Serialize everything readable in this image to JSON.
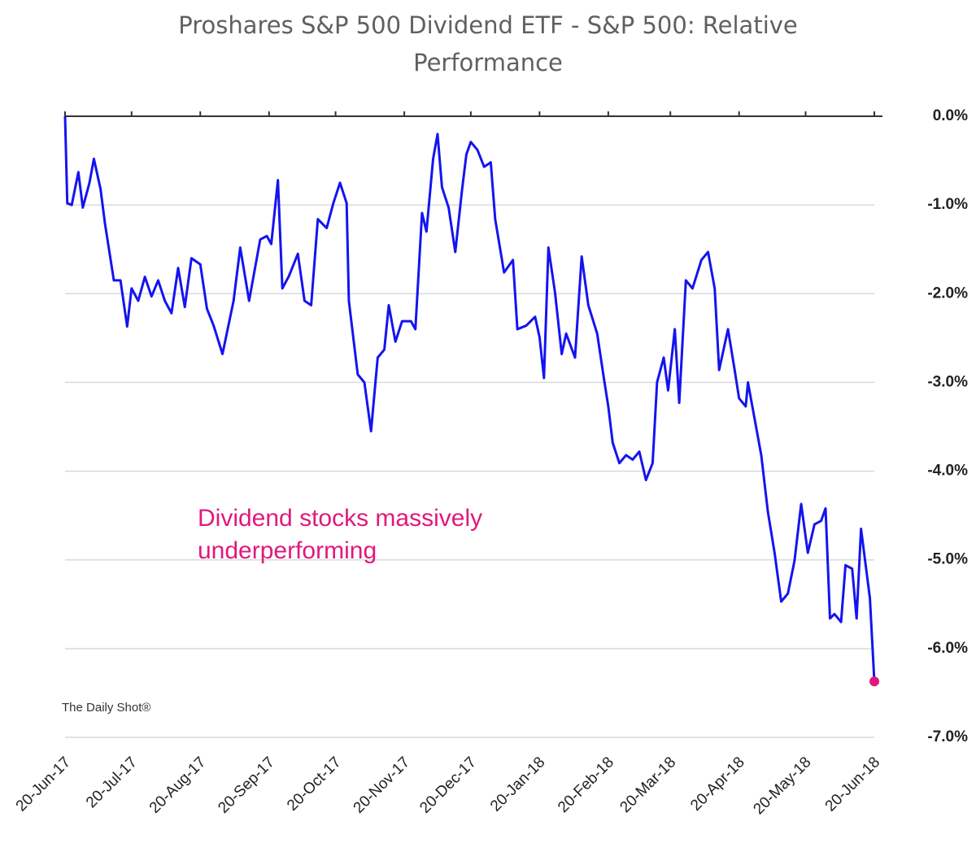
{
  "chart_data": {
    "type": "line",
    "title": "Proshares S&P 500 Dividend ETF - S&P 500:   Relative Performance",
    "annotation": "Dividend stocks massively underperforming",
    "source": "The Daily Shot®",
    "x": [
      "20-Jun-17",
      "21-Jun-17",
      "23-Jun-17",
      "26-Jun-17",
      "28-Jun-17",
      "1-Jul-17",
      "3-Jul-17",
      "6-Jul-17",
      "8-Jul-17",
      "12-Jul-17",
      "15-Jul-17",
      "18-Jul-17",
      "20-Jul-17",
      "23-Jul-17",
      "26-Jul-17",
      "29-Jul-17",
      "1-Aug-17",
      "4-Aug-17",
      "7-Aug-17",
      "10-Aug-17",
      "13-Aug-17",
      "16-Aug-17",
      "20-Aug-17",
      "23-Aug-17",
      "26-Aug-17",
      "30-Aug-17",
      "4-Sep-17",
      "7-Sep-17",
      "11-Sep-17",
      "16-Sep-17",
      "19-Sep-17",
      "21-Sep-17",
      "24-Sep-17",
      "26-Sep-17",
      "29-Sep-17",
      "3-Oct-17",
      "6-Oct-17",
      "9-Oct-17",
      "12-Oct-17",
      "16-Oct-17",
      "19-Oct-17",
      "22-Oct-17",
      "25-Oct-17",
      "26-Oct-17",
      "30-Oct-17",
      "2-Nov-17",
      "5-Nov-17",
      "8-Nov-17",
      "11-Nov-17",
      "13-Nov-17",
      "16-Nov-17",
      "19-Nov-17",
      "23-Nov-17",
      "25-Nov-17",
      "28-Nov-17",
      "30-Nov-17",
      "3-Dec-17",
      "5-Dec-17",
      "7-Dec-17",
      "10-Dec-17",
      "13-Dec-17",
      "16-Dec-17",
      "18-Dec-17",
      "20-Dec-17",
      "23-Dec-17",
      "26-Dec-17",
      "29-Dec-17",
      "31-Dec-17",
      "4-Jan-18",
      "8-Jan-18",
      "10-Jan-18",
      "14-Jan-18",
      "18-Jan-18",
      "20-Jan-18",
      "22-Jan-18",
      "24-Jan-18",
      "27-Jan-18",
      "30-Jan-18",
      "1-Feb-18",
      "5-Feb-18",
      "8-Feb-18",
      "11-Feb-18",
      "15-Feb-18",
      "18-Feb-18",
      "20-Feb-18",
      "22-Feb-18",
      "25-Feb-18",
      "28-Feb-18",
      "3-Mar-18",
      "6-Mar-18",
      "9-Mar-18",
      "12-Mar-18",
      "14-Mar-18",
      "17-Mar-18",
      "19-Mar-18",
      "22-Mar-18",
      "24-Mar-18",
      "27-Mar-18",
      "30-Mar-18",
      "3-Apr-18",
      "6-Apr-18",
      "9-Apr-18",
      "11-Apr-18",
      "15-Apr-18",
      "18-Apr-18",
      "20-Apr-18",
      "23-Apr-18",
      "24-Apr-18",
      "27-Apr-18",
      "30-Apr-18",
      "3-May-18",
      "6-May-18",
      "9-May-18",
      "12-May-18",
      "15-May-18",
      "18-May-18",
      "21-May-18",
      "24-May-18",
      "27-May-18",
      "29-May-18",
      "31-May-18",
      "2-Jun-18",
      "5-Jun-18",
      "7-Jun-18",
      "10-Jun-18",
      "12-Jun-18",
      "14-Jun-18",
      "18-Jun-18",
      "20-Jun-18"
    ],
    "series": [
      {
        "name": "Relative Performance",
        "color": "#1414f0",
        "end_color": "#e0197d",
        "axis": "y",
        "values": [
          0.0,
          -0.98,
          -1.0,
          -0.63,
          -1.03,
          -0.75,
          -0.48,
          -0.82,
          -1.21,
          -1.85,
          -1.85,
          -2.37,
          -1.94,
          -2.08,
          -1.81,
          -2.03,
          -1.85,
          -2.08,
          -2.22,
          -1.71,
          -2.15,
          -1.6,
          -1.67,
          -2.17,
          -2.36,
          -2.68,
          -2.08,
          -1.48,
          -2.08,
          -1.39,
          -1.35,
          -1.44,
          -0.72,
          -1.94,
          -1.8,
          -1.55,
          -2.08,
          -2.13,
          -1.16,
          -1.26,
          -0.98,
          -0.75,
          -0.98,
          -2.08,
          -2.91,
          -3.0,
          -3.55,
          -2.72,
          -2.63,
          -2.13,
          -2.54,
          -2.31,
          -2.31,
          -2.4,
          -1.09,
          -1.3,
          -0.48,
          -0.2,
          -0.8,
          -1.03,
          -1.53,
          -0.84,
          -0.43,
          -0.29,
          -0.38,
          -0.57,
          -0.52,
          -1.16,
          -1.76,
          -1.62,
          -2.4,
          -2.36,
          -2.26,
          -2.49,
          -2.95,
          -1.48,
          -1.99,
          -2.68,
          -2.45,
          -2.72,
          -1.58,
          -2.13,
          -2.45,
          -2.95,
          -3.27,
          -3.68,
          -3.91,
          -3.82,
          -3.87,
          -3.78,
          -4.1,
          -3.91,
          -3.0,
          -2.72,
          -3.09,
          -2.4,
          -3.23,
          -1.85,
          -1.94,
          -1.62,
          -1.53,
          -1.94,
          -2.86,
          -2.4,
          -2.86,
          -3.18,
          -3.27,
          -3.0,
          -3.41,
          -3.82,
          -4.46,
          -4.92,
          -5.47,
          -5.38,
          -5.01,
          -4.37,
          -4.92,
          -4.6,
          -4.56,
          -4.42,
          -5.66,
          -5.61,
          -5.7,
          -5.06,
          -5.1,
          -5.66,
          -4.65,
          -5.43,
          -6.37
        ]
      }
    ],
    "xlim": [
      "20-Jun-17",
      "20-Jun-18"
    ],
    "xticks": [
      "20-Jun-17",
      "20-Jul-17",
      "20-Aug-17",
      "20-Sep-17",
      "20-Oct-17",
      "20-Nov-17",
      "20-Dec-17",
      "20-Jan-18",
      "20-Feb-18",
      "20-Mar-18",
      "20-Apr-18",
      "20-May-18",
      "20-Jun-18"
    ],
    "ylim": [
      -7,
      0
    ],
    "yticks": [
      {
        "value": 0,
        "label": "0.0%"
      },
      {
        "value": -1,
        "label": "-1.0%"
      },
      {
        "value": -2,
        "label": "-2.0%"
      },
      {
        "value": -3,
        "label": "-3.0%"
      },
      {
        "value": -4,
        "label": "-4.0%"
      },
      {
        "value": -5,
        "label": "-5.0%"
      },
      {
        "value": -6,
        "label": "-6.0%"
      },
      {
        "value": -7,
        "label": "-7.0%"
      }
    ],
    "grid": true
  }
}
